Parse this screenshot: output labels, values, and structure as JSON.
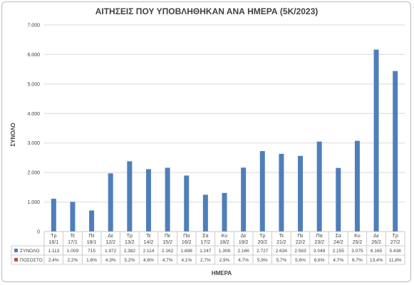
{
  "chart_data": {
    "type": "bar",
    "title": "ΑΙΤΗΣΕΙΣ ΠΟΥ ΥΠΟΒΛΗΘΗΚΑΝ ΑΝΑ ΗΜΕΡΑ (5Κ/2023)",
    "xlabel": "ΗΜΕΡΑ",
    "ylabel": "ΣΥΝΟΛΟ",
    "ylim": [
      0,
      7000
    ],
    "yticks": [
      "0",
      "1.000",
      "2.000",
      "3.000",
      "4.000",
      "5.000",
      "6.000",
      "7.000"
    ],
    "grid": true,
    "legend_placement": "data-table",
    "colors": {
      "bar": "#4f7fba",
      "percent_marker": "#c0504d",
      "grid": "#d9d9d9"
    },
    "categories": [
      [
        "Τρ",
        "16/1"
      ],
      [
        "Τε",
        "17/1"
      ],
      [
        "Πε",
        "18/1"
      ],
      [
        "Δε",
        "12/2"
      ],
      [
        "Τρ",
        "13/2"
      ],
      [
        "Τε",
        "14/2"
      ],
      [
        "Πε",
        "15/2"
      ],
      [
        "Πα",
        "16/2"
      ],
      [
        "Σα",
        "17/2"
      ],
      [
        "Κυ",
        "18/2"
      ],
      [
        "Δε",
        "19/2"
      ],
      [
        "Τρ",
        "20/2"
      ],
      [
        "Τε",
        "21/2"
      ],
      [
        "Πε",
        "22/2"
      ],
      [
        "Πα",
        "23/2"
      ],
      [
        "Σα",
        "24/2"
      ],
      [
        "Κυ",
        "25/2"
      ],
      [
        "Δε",
        "26/2"
      ],
      [
        "Τρ",
        "27/2"
      ]
    ],
    "series": [
      {
        "name": "ΣΥΝΟΛΟ",
        "values": [
          1113,
          1009,
          715,
          1972,
          2382,
          2114,
          2162,
          1898,
          1247,
          1308,
          2166,
          2727,
          2634,
          2563,
          3049,
          2155,
          3075,
          6165,
          5438
        ],
        "labels": [
          "1.113",
          "1.009",
          "715",
          "1.972",
          "2.382",
          "2.114",
          "2.162",
          "1.898",
          "1.247",
          "1.308",
          "2.166",
          "2.727",
          "2.634",
          "2.563",
          "3.049",
          "2.155",
          "3.075",
          "6.165",
          "5.438"
        ]
      },
      {
        "name": "ΠΟΣΟΣΤΟ",
        "values": [
          2.4,
          2.2,
          1.6,
          4.3,
          5.2,
          4.6,
          4.7,
          4.1,
          2.7,
          2.9,
          4.7,
          5.9,
          5.7,
          5.6,
          6.6,
          4.7,
          6.7,
          13.4,
          11.8
        ],
        "labels": [
          "2,4%",
          "2,2%",
          "1,6%",
          "4,3%",
          "5,2%",
          "4,6%",
          "4,7%",
          "4,1%",
          "2,7%",
          "2,9%",
          "4,7%",
          "5,9%",
          "5,7%",
          "5,6%",
          "6,6%",
          "4,7%",
          "6,7%",
          "13,4%",
          "11,8%"
        ]
      }
    ]
  }
}
